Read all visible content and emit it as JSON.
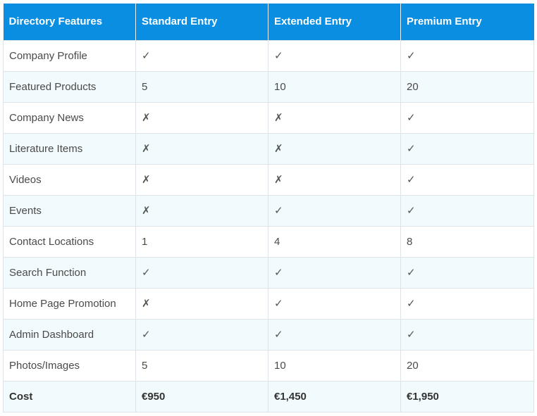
{
  "columns": [
    "Directory Features",
    "Standard Entry",
    "Extended Entry",
    "Premium Entry"
  ],
  "rows": [
    {
      "feature": "Company Profile",
      "standard": "✓",
      "extended": "✓",
      "premium": "✓"
    },
    {
      "feature": "Featured Products",
      "standard": "5",
      "extended": "10",
      "premium": "20"
    },
    {
      "feature": "Company News",
      "standard": "✗",
      "extended": "✗",
      "premium": "✓"
    },
    {
      "feature": "Literature Items",
      "standard": "✗",
      "extended": "✗",
      "premium": "✓"
    },
    {
      "feature": "Videos",
      "standard": "✗",
      "extended": "✗",
      "premium": "✓"
    },
    {
      "feature": "Events",
      "standard": "✗",
      "extended": "✓",
      "premium": "✓"
    },
    {
      "feature": "Contact Locations",
      "standard": "1",
      "extended": "4",
      "premium": "8"
    },
    {
      "feature": "Search Function",
      "standard": "✓",
      "extended": "✓",
      "premium": "✓"
    },
    {
      "feature": "Home Page Promotion",
      "standard": "✗",
      "extended": "✓",
      "premium": "✓"
    },
    {
      "feature": "Admin Dashboard",
      "standard": "✓",
      "extended": "✓",
      "premium": "✓"
    },
    {
      "feature": "Photos/Images",
      "standard": "5",
      "extended": "10",
      "premium": "20"
    },
    {
      "feature": "Cost",
      "standard": "€950",
      "extended": "€1,450",
      "premium": "€1,950"
    }
  ],
  "colors": {
    "header_bg": "#0a8ee2",
    "header_text": "#ffffff",
    "row_alt_bg": "#f1fafc",
    "border": "#dde3e8"
  }
}
